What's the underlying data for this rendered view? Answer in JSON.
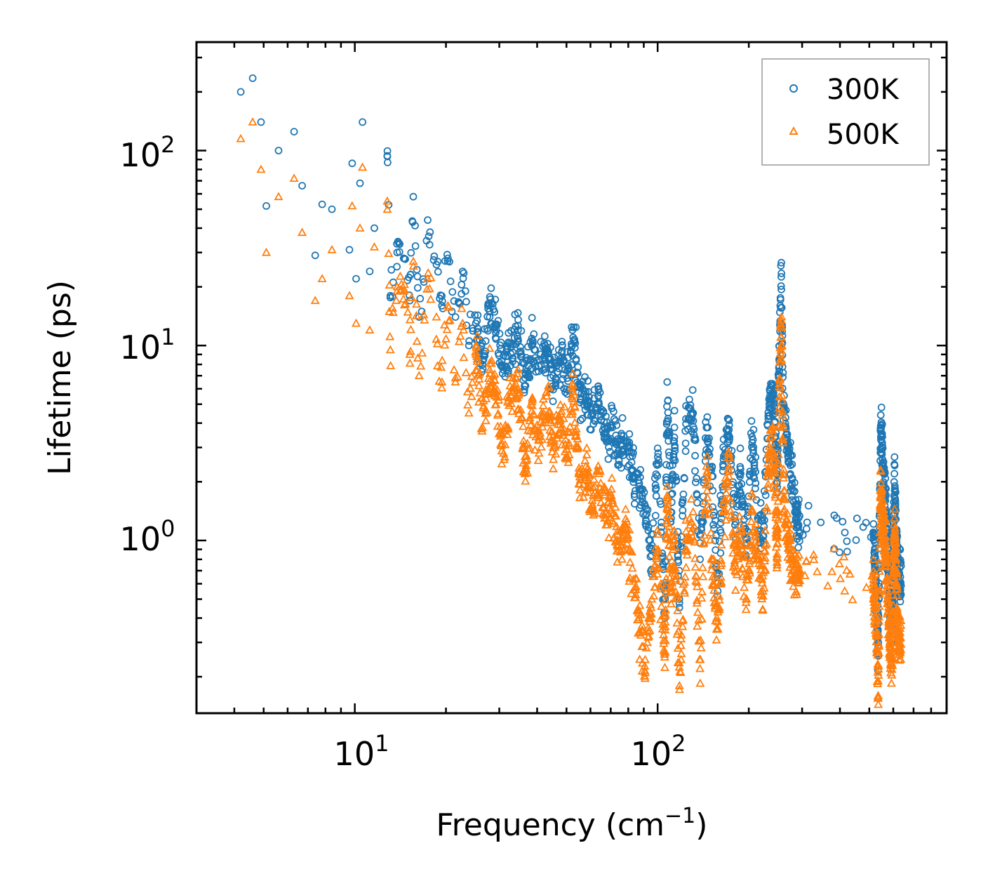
{
  "chart_data": {
    "type": "scatter",
    "xscale": "log",
    "yscale": "log",
    "xlabel": "Frequency (cm",
    "xlabel_sup": "−1",
    "xlabel_end": ")",
    "ylabel": "Lifetime (ps)",
    "xlim": [
      3.0,
      900.0
    ],
    "ylim": [
      0.13,
      360.0
    ],
    "x_ticks": [
      {
        "value": 10,
        "base": "10",
        "exp": "1"
      },
      {
        "value": 100,
        "base": "10",
        "exp": "2"
      }
    ],
    "y_ticks": [
      {
        "value": 1,
        "base": "10",
        "exp": "0"
      },
      {
        "value": 10,
        "base": "10",
        "exp": "1"
      },
      {
        "value": 100,
        "base": "10",
        "exp": "2"
      }
    ],
    "legend": {
      "position": "top-right",
      "entries": [
        "300K",
        "500K"
      ]
    },
    "colors": {
      "300K": "#1f77b4",
      "500K": "#ff7f0e"
    },
    "series": [
      {
        "name": "300K",
        "marker": "circle",
        "x": [
          4.2,
          4.6,
          4.9,
          5.1,
          5.6,
          6.3,
          6.7,
          7.4,
          7.8,
          8.4,
          9.6,
          9.8,
          10.1,
          10.4,
          10.6,
          11.2,
          11.6,
          12.8,
          13.1,
          13.8,
          14.5,
          15.2,
          15.6,
          16.3,
          17.4,
          18.6,
          19.4,
          20.3,
          21.5,
          22.7,
          23.8,
          25.1,
          26.4,
          27.9,
          29.3,
          31.0,
          32.8,
          34.6,
          36.5,
          38.4,
          40.6,
          43.0,
          45.2,
          47.8,
          50.3,
          52.6,
          55.0,
          57.9,
          60.8,
          64.0,
          67.5,
          70.9,
          74.6,
          78.4,
          82.5,
          86.8,
          91.0,
          95.6,
          100.4,
          105.7,
          107.5,
          110.8,
          113.6,
          118.0,
          124.0,
          131.0,
          138.0,
          145.0,
          152.0,
          158.0,
          165.0,
          172.0,
          180.0,
          188.0,
          196.0,
          205.0,
          214.0,
          223.0,
          232.0,
          238.0,
          244.0,
          248.0,
          252.0,
          256.0,
          260.0,
          266.0,
          272.0,
          280.0,
          288.0,
          295.0,
          515.0,
          525.0,
          535.0,
          545.0,
          555.0,
          565.0,
          575.0,
          585.0,
          595.0,
          605.0,
          615.0,
          625.0
        ],
        "y": [
          200,
          235,
          140,
          52,
          100,
          125,
          66,
          29,
          53,
          50,
          31,
          86,
          22,
          68,
          140,
          24,
          40,
          94,
          18,
          30,
          28,
          17,
          58,
          14,
          44,
          26,
          16,
          28,
          14,
          24,
          10,
          13,
          8,
          15,
          12,
          7.5,
          9.8,
          12,
          6.8,
          10,
          8.5,
          9.5,
          7,
          8.2,
          6.8,
          11,
          6.2,
          5.8,
          4.5,
          5,
          3.6,
          3.8,
          2.8,
          3.2,
          2.3,
          1.9,
          1.5,
          0.9,
          2.8,
          0.4,
          6.5,
          1.3,
          3.8,
          0.5,
          4.2,
          4.5,
          0.8,
          3.8,
          1.8,
          0.55,
          2.6,
          3.7,
          1.2,
          2.2,
          0.95,
          3.4,
          1.3,
          1.0,
          4.2,
          6.2,
          4.5,
          2.0,
          8.5,
          22.5,
          5.0,
          3.5,
          2.5,
          1.8,
          1.4,
          1.1,
          1.1,
          0.7,
          0.3,
          3.8,
          2.4,
          1.6,
          0.9,
          0.5,
          0.4,
          2.2,
          1.0,
          0.6
        ]
      },
      {
        "name": "500K",
        "marker": "triangle",
        "x": [
          4.2,
          4.6,
          4.9,
          5.1,
          5.6,
          6.3,
          6.7,
          7.4,
          7.8,
          8.4,
          9.6,
          9.8,
          10.1,
          10.4,
          10.6,
          11.2,
          11.6,
          12.8,
          13.1,
          13.8,
          14.5,
          15.2,
          15.6,
          16.3,
          17.4,
          18.6,
          19.4,
          20.3,
          21.5,
          22.7,
          23.8,
          25.1,
          26.4,
          27.9,
          29.3,
          31.0,
          32.8,
          34.6,
          36.5,
          38.4,
          40.6,
          43.0,
          45.2,
          47.8,
          50.3,
          52.6,
          55.0,
          57.9,
          60.8,
          64.0,
          67.5,
          70.9,
          74.6,
          78.4,
          82.5,
          86.8,
          91.0,
          95.6,
          100.4,
          105.7,
          107.5,
          110.8,
          113.6,
          118.0,
          124.0,
          131.0,
          138.0,
          145.0,
          152.0,
          158.0,
          165.0,
          172.0,
          180.0,
          188.0,
          196.0,
          205.0,
          214.0,
          223.0,
          232.0,
          238.0,
          244.0,
          248.0,
          252.0,
          256.0,
          260.0,
          266.0,
          272.0,
          280.0,
          288.0,
          295.0,
          515.0,
          525.0,
          535.0,
          545.0,
          555.0,
          565.0,
          575.0,
          585.0,
          595.0,
          605.0,
          615.0,
          625.0
        ],
        "y": [
          115,
          140,
          80,
          30,
          58,
          72,
          38,
          17,
          22,
          31,
          18,
          52,
          13,
          40,
          82,
          12,
          32,
          55,
          9.5,
          20,
          19,
          9,
          27,
          7,
          22,
          14,
          6.5,
          16,
          6.5,
          13,
          4.5,
          9,
          3.8,
          7.5,
          5.8,
          2.8,
          5.5,
          6,
          2.2,
          4.6,
          3.4,
          5.5,
          3,
          4.2,
          2.7,
          5.8,
          2.2,
          2.4,
          1.5,
          2.2,
          1.2,
          1.6,
          0.9,
          1.2,
          0.72,
          0.4,
          0.21,
          0.5,
          0.9,
          0.27,
          1.7,
          0.55,
          1.0,
          0.18,
          0.9,
          1.4,
          0.22,
          2.4,
          0.65,
          0.35,
          1.4,
          2.4,
          0.7,
          1.2,
          0.5,
          1.4,
          0.8,
          0.55,
          2.2,
          3.4,
          2.0,
          0.85,
          4.8,
          13.5,
          2.2,
          1.2,
          0.95,
          0.75,
          0.7,
          0.7,
          0.6,
          0.45,
          0.16,
          1.8,
          1.2,
          0.85,
          0.5,
          0.28,
          0.25,
          1.3,
          0.6,
          0.3
        ]
      }
    ]
  }
}
